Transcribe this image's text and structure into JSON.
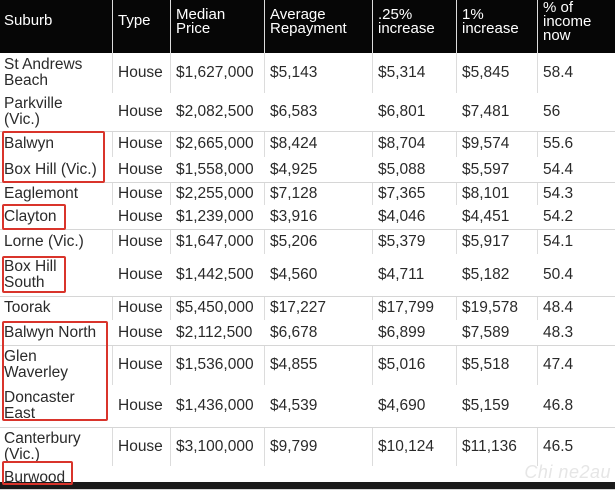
{
  "header": [
    "Suburb",
    "Type",
    "Median\nPrice",
    "Average\nRepayment",
    ".25%\nincrease",
    "1%\nincrease",
    "% of\nincome\nnow"
  ],
  "rows": [
    [
      "St Andrews\nBeach",
      "House",
      "$1,627,000",
      "$5,143",
      "$5,314",
      "$5,845",
      "58.4"
    ],
    [
      "Parkville\n(Vic.)",
      "House",
      "$2,082,500",
      "$6,583",
      "$6,801",
      "$7,481",
      "56"
    ],
    [
      "Balwyn",
      "House",
      "$2,665,000",
      "$8,424",
      "$8,704",
      "$9,574",
      "55.6"
    ],
    [
      "Box Hill (Vic.)",
      "House",
      "$1,558,000",
      "$4,925",
      "$5,088",
      "$5,597",
      "54.4"
    ],
    [
      "Eaglemont",
      "House",
      "$2,255,000",
      "$7,128",
      "$7,365",
      "$8,101",
      "54.3"
    ],
    [
      "Clayton",
      "House",
      "$1,239,000",
      "$3,916",
      "$4,046",
      "$4,451",
      "54.2"
    ],
    [
      "Lorne (Vic.)",
      "House",
      "$1,647,000",
      "$5,206",
      "$5,379",
      "$5,917",
      "54.1"
    ],
    [
      "Box Hill\nSouth",
      "House",
      "$1,442,500",
      "$4,560",
      "$4,711",
      "$5,182",
      "50.4"
    ],
    [
      "Toorak",
      "House",
      "$5,450,000",
      "$17,227",
      "$17,799",
      "$19,578",
      "48.4"
    ],
    [
      "Balwyn North",
      "House",
      "$2,112,500",
      "$6,678",
      "$6,899",
      "$7,589",
      "48.3"
    ],
    [
      "Glen\nWaverley",
      "House",
      "$1,536,000",
      "$4,855",
      "$5,016",
      "$5,518",
      "47.4"
    ],
    [
      "Doncaster\nEast",
      "House",
      "$1,436,000",
      "$4,539",
      "$4,690",
      "$5,159",
      "46.8"
    ],
    [
      "Canterbury\n(Vic.)",
      "House",
      "$3,100,000",
      "$9,799",
      "$10,124",
      "$11,136",
      "46.5"
    ],
    [
      "Burwood",
      "",
      "",
      "",
      "",
      "",
      ""
    ]
  ],
  "highlight_color": "#d9342b",
  "watermark": "Chi ne2au"
}
